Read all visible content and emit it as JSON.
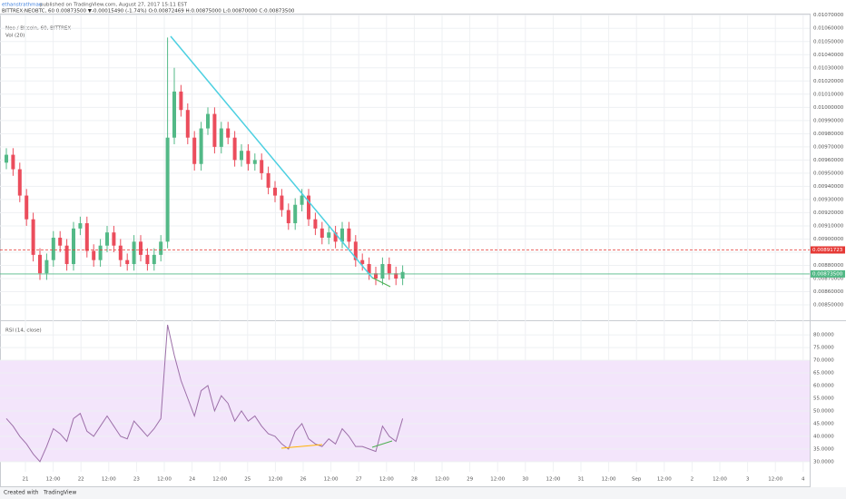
{
  "header": {
    "author": "ethanstrathman",
    "published": "published on TradingView.com, August 27, 2017 15:11 EST",
    "symbol_line": "BITTREX:NEOBTC, 60 0.00873500 ▼-0.00015490 (-1.74%) O:0.00872469 H:0.00875000 L:0.00870000 C:0.00873500"
  },
  "chart_data": [
    {
      "type": "candlestick",
      "title": "Neo / Bitcoin, 60, BITTREX",
      "indicator": "Vol (20)",
      "open": [
        0.00958,
        0.00964,
        0.00953,
        0.00933,
        0.00915,
        0.00888,
        0.00874,
        0.00884,
        0.00901,
        0.00895,
        0.00881,
        0.00908,
        0.00912,
        0.00891,
        0.00884,
        0.00895,
        0.00905,
        0.00895,
        0.00884,
        0.00881,
        0.00898,
        0.00888,
        0.00881,
        0.00888,
        0.00898,
        0.00977,
        0.01012,
        0.00998,
        0.00977,
        0.00957,
        0.00984,
        0.00995,
        0.0097,
        0.00984,
        0.00977,
        0.0096,
        0.00967,
        0.00957,
        0.0096,
        0.0095,
        0.00939,
        0.00933,
        0.00922,
        0.00912,
        0.00926,
        0.00933,
        0.00915,
        0.00908,
        0.00901,
        0.00905,
        0.00898,
        0.00908,
        0.00898,
        0.00884,
        0.00881,
        0.00874,
        0.0087,
        0.00881,
        0.00874,
        0.0087
      ],
      "high": [
        0.00969,
        0.00969,
        0.00958,
        0.00938,
        0.0092,
        0.00893,
        0.00889,
        0.00906,
        0.00906,
        0.009,
        0.00913,
        0.00917,
        0.00917,
        0.00896,
        0.009,
        0.0091,
        0.0091,
        0.009,
        0.00889,
        0.00903,
        0.00903,
        0.00893,
        0.00893,
        0.00903,
        0.01053,
        0.0103,
        0.01017,
        0.01003,
        0.00982,
        0.00989,
        0.01,
        0.01,
        0.00989,
        0.00989,
        0.00982,
        0.00972,
        0.00972,
        0.00965,
        0.00965,
        0.00955,
        0.00944,
        0.00938,
        0.00927,
        0.00931,
        0.00938,
        0.00938,
        0.0092,
        0.00913,
        0.0091,
        0.0091,
        0.00913,
        0.00913,
        0.00903,
        0.00889,
        0.00886,
        0.00879,
        0.00886,
        0.00886,
        0.00879,
        0.0088
      ],
      "low": [
        0.00953,
        0.00948,
        0.00928,
        0.0091,
        0.00883,
        0.00869,
        0.00869,
        0.00879,
        0.0089,
        0.00876,
        0.00876,
        0.00903,
        0.00886,
        0.00879,
        0.00879,
        0.0089,
        0.0089,
        0.00879,
        0.00876,
        0.00876,
        0.00883,
        0.00876,
        0.00876,
        0.00883,
        0.00893,
        0.00972,
        0.00993,
        0.00972,
        0.00952,
        0.00952,
        0.00979,
        0.00965,
        0.00965,
        0.00972,
        0.00955,
        0.00955,
        0.00952,
        0.00952,
        0.00945,
        0.00934,
        0.00928,
        0.00917,
        0.00907,
        0.00907,
        0.00921,
        0.0091,
        0.00903,
        0.00896,
        0.00896,
        0.00893,
        0.00893,
        0.00893,
        0.00879,
        0.00876,
        0.00869,
        0.00865,
        0.00865,
        0.00869,
        0.00865,
        0.00865
      ],
      "close": [
        0.00964,
        0.00953,
        0.00933,
        0.00915,
        0.00888,
        0.00874,
        0.00884,
        0.00901,
        0.00895,
        0.00881,
        0.00908,
        0.00912,
        0.00891,
        0.00884,
        0.00895,
        0.00905,
        0.00895,
        0.00884,
        0.00881,
        0.00898,
        0.00888,
        0.00881,
        0.00888,
        0.00898,
        0.00977,
        0.01012,
        0.00998,
        0.00977,
        0.00957,
        0.00984,
        0.00995,
        0.0097,
        0.00984,
        0.00977,
        0.0096,
        0.00967,
        0.00957,
        0.0096,
        0.0095,
        0.00939,
        0.00933,
        0.00922,
        0.00912,
        0.00926,
        0.00933,
        0.00915,
        0.00908,
        0.00901,
        0.00905,
        0.00898,
        0.00908,
        0.00898,
        0.00884,
        0.00881,
        0.00874,
        0.0087,
        0.00881,
        0.00874,
        0.0087,
        0.00875
      ],
      "up_color": "#53b987",
      "down_color": "#eb4d5c",
      "ylim": [
        0.00839,
        0.010705
      ],
      "yticks": [
        {
          "value": 0.0085,
          "label": "0.00850000"
        },
        {
          "value": 0.0086,
          "label": "0.00860000"
        },
        {
          "value": 0.0087,
          "label": "0.00870000"
        },
        {
          "value": 0.0088,
          "label": "0.00880000"
        },
        {
          "value": 0.0089,
          "label": "0.00890000"
        },
        {
          "value": 0.009,
          "label": "0.00900000"
        },
        {
          "value": 0.0091,
          "label": "0.00910000"
        },
        {
          "value": 0.0092,
          "label": "0.00920000"
        },
        {
          "value": 0.0093,
          "label": "0.00930000"
        },
        {
          "value": 0.0094,
          "label": "0.00940000"
        },
        {
          "value": 0.0095,
          "label": "0.00950000"
        },
        {
          "value": 0.0096,
          "label": "0.00960000"
        },
        {
          "value": 0.0097,
          "label": "0.00970000"
        },
        {
          "value": 0.0098,
          "label": "0.00980000"
        },
        {
          "value": 0.0099,
          "label": "0.00990000"
        },
        {
          "value": 0.01,
          "label": "0.01000000"
        },
        {
          "value": 0.0101,
          "label": "0.01010000"
        },
        {
          "value": 0.0102,
          "label": "0.01020000"
        },
        {
          "value": 0.0103,
          "label": "0.01030000"
        },
        {
          "value": 0.0104,
          "label": "0.01040000"
        },
        {
          "value": 0.0105,
          "label": "0.01050000"
        },
        {
          "value": 0.0106,
          "label": "0.01060000"
        },
        {
          "value": 0.0107,
          "label": "0.01070000"
        }
      ],
      "price_lines": [
        {
          "value": 0.00891723,
          "color": "#e53935",
          "dashed": true
        },
        {
          "value": {
            "value": 0.008735,
            "label": "0.00873500"
          },
          "color": "#53b987",
          "dashed": false
        }
      ],
      "grid": true
    },
    {
      "type": "line",
      "title": "RSI (14, close)",
      "color": "#9c6fa8",
      "values": [
        47,
        44,
        40,
        37,
        33,
        30,
        36,
        43,
        41,
        38,
        47,
        49,
        42,
        40,
        44,
        48,
        44,
        40,
        39,
        46,
        43,
        40,
        43,
        47,
        84,
        72,
        62,
        55,
        48,
        58,
        60,
        50,
        56,
        53,
        46,
        50,
        46,
        48,
        44,
        41,
        40,
        37,
        35,
        42,
        45,
        39,
        37,
        36,
        39,
        37,
        43,
        40,
        36,
        36,
        35,
        34,
        44,
        40,
        38,
        47
      ],
      "ylim": [
        26,
        84.7
      ],
      "yticks": [
        {
          "value": 30,
          "label": "30.0000"
        },
        {
          "value": 35,
          "label": "35.0000"
        },
        {
          "value": 40,
          "label": "40.0000"
        },
        {
          "value": 45,
          "label": "45.0000"
        },
        {
          "value": 50,
          "label": "50.0000"
        },
        {
          "value": 55,
          "label": "55.0000"
        },
        {
          "value": 60,
          "label": "60.0000"
        },
        {
          "value": 65,
          "label": "65.0000"
        },
        {
          "value": 70,
          "label": "70.0000"
        },
        {
          "value": 75,
          "label": "75.0000"
        },
        {
          "value": 80,
          "label": "80.0000"
        }
      ],
      "band": [
        30,
        70
      ],
      "band_color": "#f3e5fb",
      "grid": true
    }
  ],
  "time_labels": [
    "21",
    "12:00",
    "22",
    "12:00",
    "23",
    "12:00",
    "24",
    "12:00",
    "25",
    "12:00",
    "26",
    "12:00",
    "27",
    "12:00",
    "28",
    "12:00",
    "29",
    "12:00",
    "30",
    "12:00",
    "31",
    "12:00",
    "Sep",
    "12:00",
    "2",
    "12:00",
    "3",
    "12:00",
    "4"
  ],
  "footer": {
    "created": "Created with",
    "brand": "TradingView"
  }
}
